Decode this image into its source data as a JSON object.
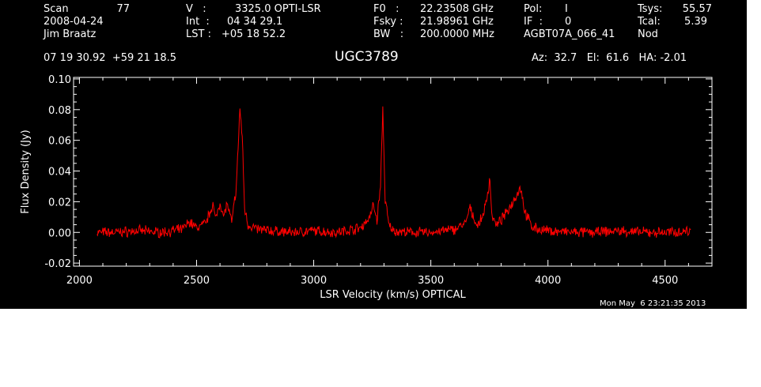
{
  "header": {
    "col1": [
      "Scan",
      "2008-04-24",
      "Jim Braatz"
    ],
    "scan_number": "77",
    "col2_keys": [
      "V   :",
      "Int  :",
      "LST :"
    ],
    "col2_vals": [
      "3325.0 OPTI-LSR",
      "04 34 29.1",
      "+05 18 52.2"
    ],
    "col3_keys": [
      "F0   :",
      "Fsky :",
      "BW   :"
    ],
    "col3_vals": [
      "22.23508 GHz",
      "21.98961 GHz",
      "200.0000 MHz"
    ],
    "col4_keys": [
      "Pol:",
      "IF  :",
      "AGBT07A_066_41"
    ],
    "col4_vals": [
      "I",
      "0",
      ""
    ],
    "col5_keys": [
      "Tsys:",
      "Tcal:",
      "Nod"
    ],
    "col5_vals": [
      "55.57",
      "5.39",
      ""
    ],
    "coords": "07 19 30.92  +59 21 18.5",
    "source": "UGC3789",
    "pointing": "Az:  32.7   El:  61.6   HA: -2.01",
    "timestamp": "Mon May  6 23:21:35 2013"
  },
  "chart_data": {
    "type": "line",
    "title": "UGC3789",
    "xlabel": "LSR Velocity (km/s) OPTICAL",
    "ylabel": "Flux Density (Jy)",
    "xlim": [
      1975,
      4700
    ],
    "ylim": [
      -0.022,
      0.101
    ],
    "xticks": [
      2000,
      2500,
      3000,
      3500,
      4000,
      4500
    ],
    "yticks": [
      -0.02,
      0.0,
      0.02,
      0.04,
      0.06,
      0.08,
      0.1
    ],
    "ytick_labels": [
      "-0.02",
      "0.00",
      "0.02",
      "0.04",
      "0.06",
      "0.08",
      "0.10"
    ],
    "grid": false,
    "series": [
      {
        "color": "#ff0000",
        "x": [
          2075,
          2150,
          2250,
          2350,
          2440,
          2470,
          2500,
          2540,
          2570,
          2580,
          2600,
          2615,
          2630,
          2650,
          2670,
          2685,
          2695,
          2705,
          2720,
          2760,
          2820,
          2900,
          3000,
          3100,
          3200,
          3240,
          3255,
          3270,
          3285,
          3295,
          3305,
          3320,
          3340,
          3400,
          3500,
          3600,
          3650,
          3665,
          3700,
          3720,
          3740,
          3752,
          3760,
          3780,
          3820,
          3850,
          3870,
          3885,
          3900,
          3930,
          3960,
          4000,
          4100,
          4200,
          4300,
          4400,
          4500,
          4610
        ],
        "y": [
          0.0,
          0.0,
          0.001,
          0.0,
          0.002,
          0.007,
          0.003,
          0.006,
          0.019,
          0.008,
          0.02,
          0.01,
          0.019,
          0.006,
          0.03,
          0.081,
          0.062,
          0.016,
          0.005,
          0.002,
          0.001,
          0.0,
          0.001,
          0.0,
          0.003,
          0.01,
          0.018,
          0.008,
          0.03,
          0.08,
          0.022,
          0.005,
          0.001,
          0.0,
          0.0,
          0.002,
          0.006,
          0.016,
          0.004,
          0.01,
          0.022,
          0.036,
          0.012,
          0.004,
          0.012,
          0.02,
          0.026,
          0.029,
          0.014,
          0.004,
          0.002,
          0.001,
          0.0,
          0.0,
          0.001,
          0.0,
          0.0,
          0.001
        ]
      }
    ]
  }
}
